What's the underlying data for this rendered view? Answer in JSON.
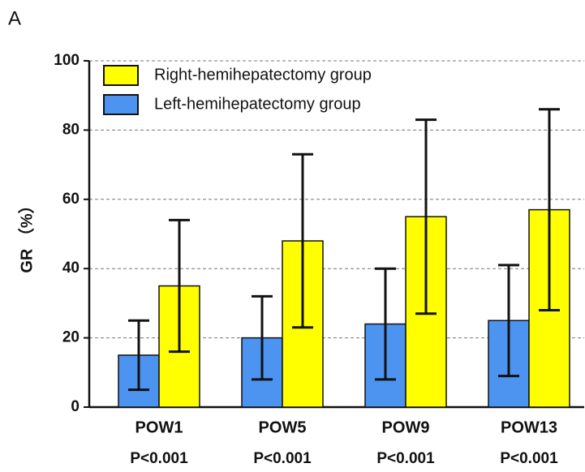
{
  "panel_label": "A",
  "chart_data": {
    "type": "bar",
    "ylabel": "GR （%）",
    "categories": [
      "POW1",
      "POW5",
      "POW9",
      "POW13"
    ],
    "p_values": [
      "P<0.001",
      "P<0.001",
      "P<0.001",
      "P<0.001"
    ],
    "series": [
      {
        "name": "Left-hemihepatectomy group",
        "color": "#4d94f0",
        "values": [
          15,
          20,
          24,
          25
        ],
        "errors": [
          10,
          12,
          16,
          16
        ]
      },
      {
        "name": "Right-hemihepatectomy group",
        "color": "#ffff00",
        "values": [
          35,
          48,
          55,
          57
        ],
        "errors": [
          19,
          25,
          28,
          29
        ]
      }
    ],
    "ylim": [
      0,
      100
    ],
    "yticks": [
      0,
      20,
      40,
      60,
      80,
      100
    ],
    "grid": true
  }
}
